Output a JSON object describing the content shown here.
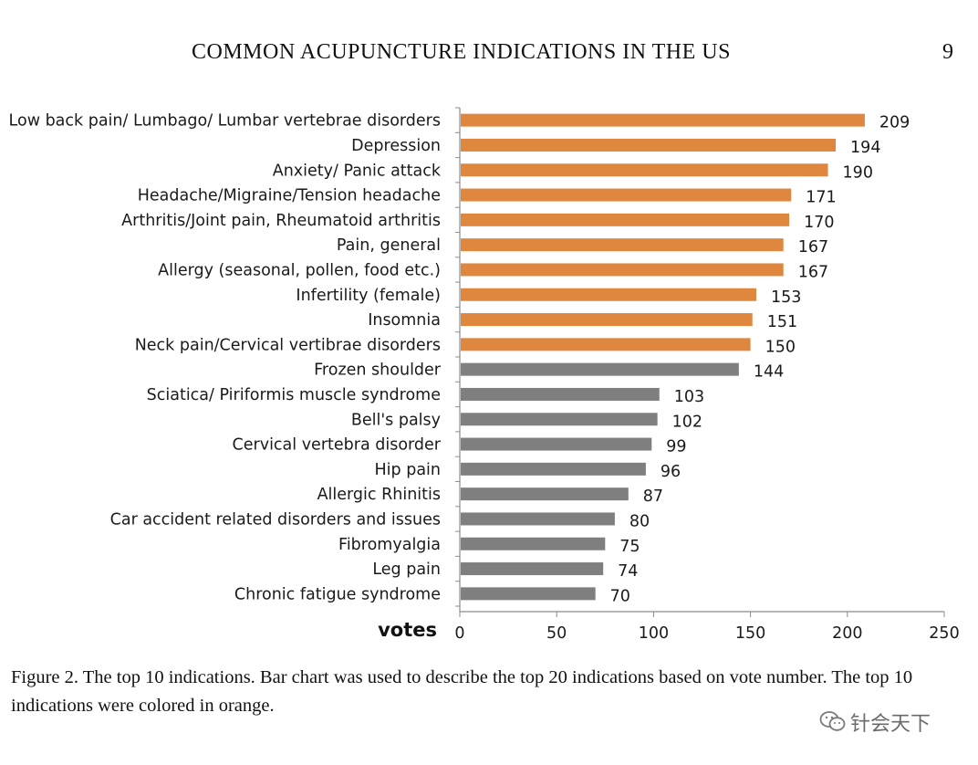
{
  "header": {
    "running_title": "COMMON ACUPUNCTURE INDICATIONS IN THE US",
    "page_number": "9"
  },
  "colors": {
    "top10": "#E0873F",
    "others": "#7F7F7F",
    "axis": "#8C8C8C"
  },
  "chart_data": {
    "type": "bar",
    "orientation": "horizontal",
    "title": "",
    "xlabel": "votes",
    "ylabel": "",
    "xlim": [
      0,
      250
    ],
    "xticks": [
      0,
      50,
      100,
      150,
      200,
      250
    ],
    "grid": false,
    "legend": "none",
    "categories": [
      "Low back pain/ Lumbago/ Lumbar vertebrae disorders",
      "Depression",
      "Anxiety/ Panic attack",
      "Headache/Migraine/Tension headache",
      "Arthritis/Joint pain, Rheumatoid arthritis",
      "Pain, general",
      "Allergy (seasonal, pollen, food etc.)",
      "Infertility (female)",
      "Insomnia",
      "Neck pain/Cervical vertibrae disorders",
      "Frozen shoulder",
      "Sciatica/ Piriformis muscle syndrome",
      "Bell's palsy",
      "Cervical vertebra disorder",
      "Hip pain",
      "Allergic Rhinitis",
      "Car accident related disorders and issues",
      "Fibromyalgia",
      "Leg pain",
      "Chronic fatigue syndrome"
    ],
    "values": [
      209,
      194,
      190,
      171,
      170,
      167,
      167,
      153,
      151,
      150,
      144,
      103,
      102,
      99,
      96,
      87,
      80,
      75,
      74,
      70
    ],
    "highlight_top_n": 10
  },
  "caption": "Figure 2.  The top 10 indications. Bar chart was used to describe the top 20 indications based on vote number. The top 10 indications were colored in orange.",
  "watermark": {
    "icon": "wechat-icon",
    "text": "针会天下"
  }
}
